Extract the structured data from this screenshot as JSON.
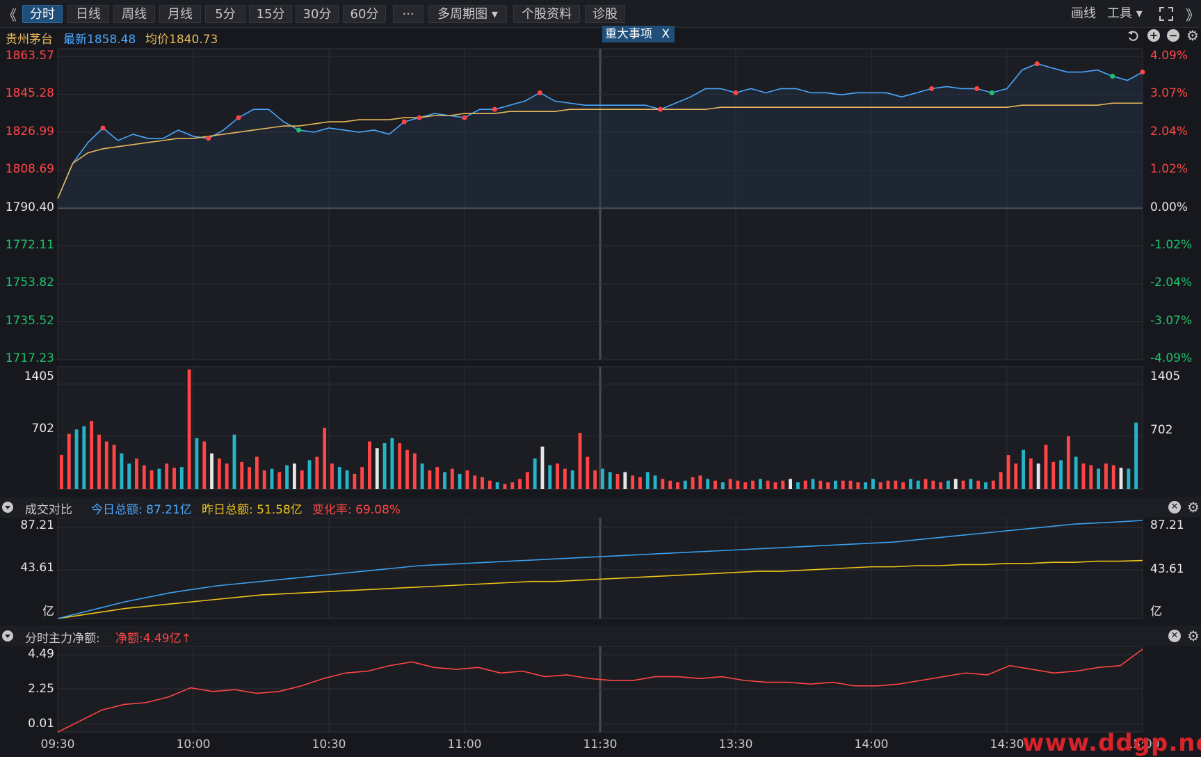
{
  "toolbar": {
    "collapse_glyph": "《",
    "expand_glyph": "》",
    "tabs": [
      {
        "label": "分时",
        "active": true
      },
      {
        "label": "日线"
      },
      {
        "label": "周线"
      },
      {
        "label": "月线"
      },
      {
        "label": "5分"
      },
      {
        "label": "15分"
      },
      {
        "label": "30分"
      },
      {
        "label": "60分"
      },
      {
        "label": "···"
      },
      {
        "label": "多周期图 ▾"
      },
      {
        "label": "个股资料"
      },
      {
        "label": "诊股"
      }
    ],
    "draw_label": "画线",
    "tools_label": "工具 ▾",
    "fullscreen_icon": "fullscreen-icon"
  },
  "info": {
    "stock_name": "贵州茅台",
    "latest": "最新1858.48",
    "avg": "均价1840.73",
    "event_label": "重大事项",
    "event_close": "X"
  },
  "price_axis": {
    "left": [
      "1863.57",
      "1845.28",
      "1826.99",
      "1808.69",
      "1790.40",
      "1772.11",
      "1753.82",
      "1735.52",
      "1717.23"
    ],
    "right": [
      "4.09%",
      "3.07%",
      "2.04%",
      "1.02%",
      "0.00%",
      "-1.02%",
      "-2.04%",
      "-3.07%",
      "-4.09%"
    ]
  },
  "volume_axis": {
    "left": [
      "1405",
      "702"
    ],
    "right": [
      "1405",
      "702"
    ]
  },
  "turnover_panel": {
    "title": "成交对比",
    "today": "今日总额: 87.21亿",
    "yesterday": "昨日总额: 51.58亿",
    "change": "变化率: 69.08%",
    "axis_left": [
      "87.21",
      "43.61",
      "亿"
    ],
    "axis_right": [
      "87.21",
      "43.61",
      "亿"
    ]
  },
  "netflow_panel": {
    "title": "分时主力净额:",
    "net": "净额:4.49亿↑",
    "axis_left": [
      "4.49",
      "2.25",
      "0.01"
    ]
  },
  "time_axis": [
    "09:30",
    "10:00",
    "10:30",
    "11:00",
    "11:30",
    "13:30",
    "14:00",
    "14:30",
    "15:00"
  ],
  "watermark": "www.ddgp.net",
  "colors": {
    "price_line": "#4aa8ff",
    "avg_line": "#e8b85a",
    "up": "#ff4545",
    "down": "#21c06b",
    "today_line": "#3aa0f0",
    "yesterday_line": "#f0c419",
    "netflow_line": "#ff4545",
    "volume_cyan": "#25b5c8"
  },
  "chart_data": [
    {
      "type": "line",
      "x_range": [
        "09:30",
        "15:00"
      ],
      "ylim": [
        1717.23,
        1863.57
      ],
      "prev_close": 1790.4,
      "series": [
        {
          "name": "最新",
          "values": [
            1795,
            1812,
            1822,
            1829,
            1823,
            1826,
            1824,
            1824,
            1828,
            1825,
            1824,
            1828,
            1834,
            1838,
            1838,
            1832,
            1828,
            1827,
            1829,
            1828,
            1827,
            1828,
            1826,
            1832,
            1834,
            1836,
            1835,
            1834,
            1838,
            1838,
            1840,
            1842,
            1846,
            1842,
            1841,
            1840,
            1840,
            1840,
            1840,
            1840,
            1838,
            1841,
            1844,
            1848,
            1848,
            1846,
            1848,
            1846,
            1848,
            1848,
            1846,
            1846,
            1845,
            1846,
            1846,
            1846,
            1844,
            1846,
            1848,
            1849,
            1848,
            1848,
            1846,
            1848,
            1857,
            1860,
            1858,
            1856,
            1856,
            1857,
            1854,
            1852,
            1856
          ],
          "range_note": "minute price (approx.)"
        },
        {
          "name": "均价",
          "values": [
            1795,
            1812,
            1817,
            1819,
            1820,
            1821,
            1822,
            1823,
            1824,
            1824,
            1825,
            1826,
            1827,
            1828,
            1829,
            1830,
            1830,
            1831,
            1832,
            1832,
            1833,
            1833,
            1833,
            1834,
            1834,
            1835,
            1835,
            1836,
            1836,
            1836,
            1837,
            1837,
            1837,
            1837,
            1838,
            1838,
            1838,
            1838,
            1838,
            1838,
            1838,
            1838,
            1838,
            1838,
            1839,
            1839,
            1839,
            1839,
            1839,
            1839,
            1839,
            1839,
            1839,
            1839,
            1839,
            1839,
            1839,
            1839,
            1839,
            1839,
            1839,
            1839,
            1839,
            1839,
            1840,
            1840,
            1840,
            1840,
            1840,
            1840,
            1841,
            1841,
            1841
          ]
        }
      ]
    },
    {
      "type": "bar",
      "ylim": [
        0,
        1405
      ],
      "values": [
        400,
        650,
        700,
        740,
        800,
        640,
        560,
        520,
        420,
        300,
        360,
        280,
        220,
        240,
        300,
        250,
        260,
        1405,
        600,
        560,
        420,
        360,
        300,
        640,
        320,
        260,
        380,
        220,
        240,
        200,
        280,
        300,
        220,
        340,
        380,
        720,
        300,
        260,
        220,
        180,
        260,
        560,
        480,
        540,
        600,
        540,
        460,
        420,
        300,
        220,
        260,
        200,
        240,
        180,
        220,
        160,
        140,
        100,
        80,
        60,
        80,
        120,
        200,
        360,
        500,
        280,
        300,
        240,
        220,
        660,
        380,
        220,
        240,
        200,
        180,
        200,
        160,
        140,
        200,
        160,
        120,
        100,
        80,
        100,
        140,
        160,
        120,
        100,
        80,
        120,
        100,
        80,
        100,
        120,
        100,
        80,
        100,
        120,
        80,
        100,
        120,
        100,
        80,
        100,
        100,
        100,
        80,
        80,
        120,
        80,
        100,
        100,
        80,
        120,
        100,
        120,
        100,
        80,
        100,
        120,
        100,
        120,
        100,
        80,
        100,
        200,
        400,
        300,
        460,
        360,
        300,
        520,
        320,
        340,
        620,
        380,
        300,
        280,
        240,
        300,
        280,
        250,
        240,
        780
      ]
    },
    {
      "type": "line",
      "ylim": [
        0,
        87.21
      ],
      "series": [
        {
          "name": "今日总额",
          "values": [
            0,
            5,
            10,
            15,
            19,
            23,
            26,
            29,
            31,
            33,
            35,
            37,
            39,
            41,
            43,
            45,
            47,
            48,
            49,
            50,
            51,
            52,
            53,
            54,
            55,
            56,
            57,
            58,
            59,
            60,
            61,
            62,
            63,
            64,
            65,
            66,
            67,
            68,
            70,
            72,
            74,
            76,
            78,
            80,
            82,
            84,
            85,
            86,
            87.21
          ]
        },
        {
          "name": "昨日总额",
          "values": [
            0,
            3,
            6,
            9,
            11,
            13,
            15,
            17,
            19,
            21,
            22,
            23,
            24,
            25,
            26,
            27,
            28,
            29,
            30,
            31,
            32,
            33,
            33,
            34,
            35,
            36,
            37,
            38,
            39,
            40,
            41,
            42,
            42,
            43,
            44,
            45,
            46,
            46,
            47,
            47,
            48,
            48,
            49,
            49,
            50,
            50,
            51,
            51,
            51.58
          ]
        }
      ]
    },
    {
      "type": "line",
      "ylim": [
        0.01,
        4.49
      ],
      "series": [
        {
          "name": "净额",
          "values": [
            0,
            0.6,
            1.2,
            1.5,
            1.6,
            1.9,
            2.4,
            2.2,
            2.3,
            2.1,
            2.2,
            2.5,
            2.9,
            3.2,
            3.3,
            3.6,
            3.8,
            3.5,
            3.4,
            3.5,
            3.2,
            3.3,
            3.0,
            3.1,
            2.9,
            2.8,
            2.8,
            3.0,
            3.0,
            2.9,
            3.0,
            2.8,
            2.7,
            2.7,
            2.6,
            2.7,
            2.5,
            2.5,
            2.6,
            2.8,
            3.0,
            3.2,
            3.1,
            3.6,
            3.4,
            3.2,
            3.3,
            3.5,
            3.6,
            4.49
          ]
        }
      ]
    }
  ]
}
